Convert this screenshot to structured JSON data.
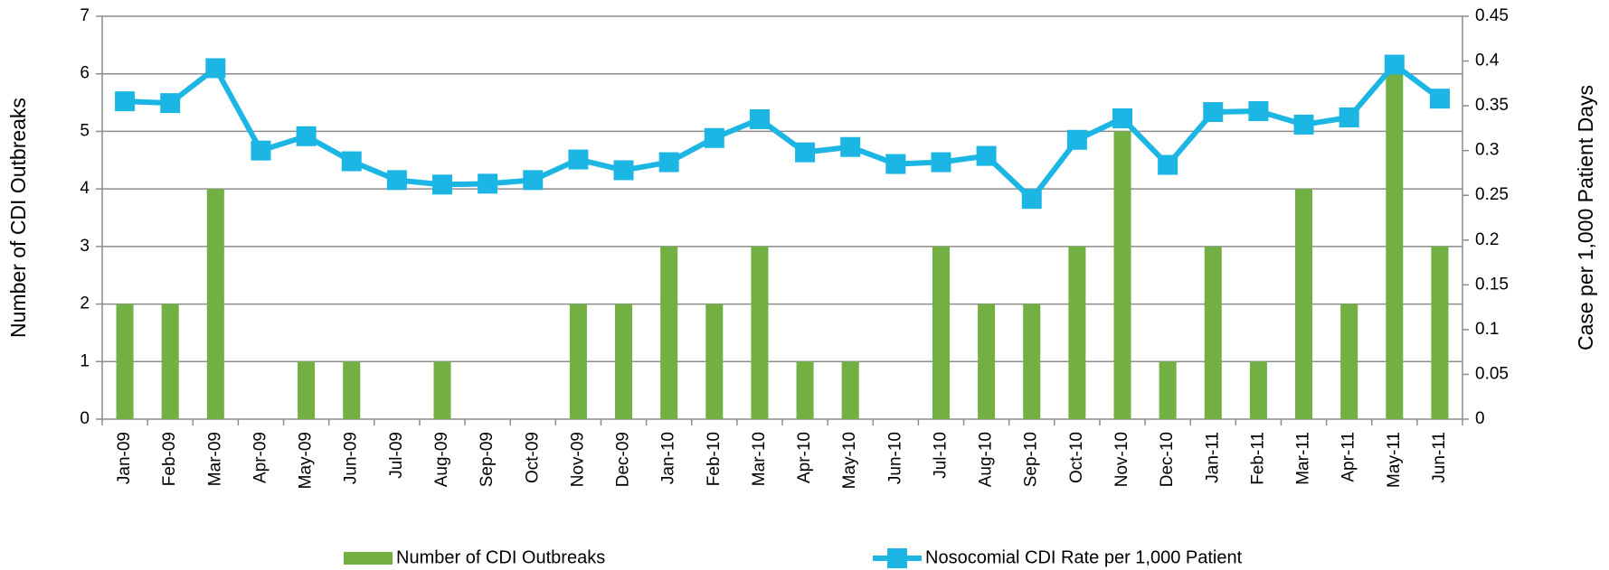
{
  "chart_data": {
    "type": "bar",
    "categories": [
      "Jan-09",
      "Feb-09",
      "Mar-09",
      "Apr-09",
      "May-09",
      "Jun-09",
      "Jul-09",
      "Aug-09",
      "Sep-09",
      "Oct-09",
      "Nov-09",
      "Dec-09",
      "Jan-10",
      "Feb-10",
      "Mar-10",
      "Apr-10",
      "May-10",
      "Jun-10",
      "Jul-10",
      "Aug-10",
      "Sep-10",
      "Oct-10",
      "Nov-10",
      "Dec-10",
      "Jan-11",
      "Feb-11",
      "Mar-11",
      "Apr-11",
      "May-11",
      "Jun-11"
    ],
    "series": [
      {
        "name": "Number of CDI Outbreaks",
        "type": "bar",
        "color": "#72b043",
        "values": [
          2,
          2,
          4,
          0,
          1,
          1,
          0,
          1,
          0,
          0,
          2,
          2,
          3,
          2,
          3,
          1,
          1,
          0,
          3,
          2,
          2,
          3,
          5,
          1,
          3,
          1,
          4,
          2,
          6,
          3
        ]
      },
      {
        "name": "Nosocomial CDI Rate per 1,000 Patient",
        "type": "line",
        "axis": "y2",
        "color": "#1cb6e4",
        "values": [
          0.355,
          0.353,
          0.392,
          0.3,
          0.316,
          0.288,
          0.267,
          0.262,
          0.263,
          0.267,
          0.29,
          0.278,
          0.287,
          0.314,
          0.335,
          0.298,
          0.304,
          0.285,
          0.287,
          0.294,
          0.246,
          0.312,
          0.336,
          0.284,
          0.343,
          0.344,
          0.329,
          0.337,
          0.396,
          0.358
        ]
      }
    ],
    "y_label": "Number of CDI Outbreaks",
    "y2_label": "Case per 1,000 Patient Days",
    "ylim": [
      0,
      7
    ],
    "yticks": [
      0,
      1,
      2,
      3,
      4,
      5,
      6,
      7
    ],
    "y2lim": [
      0,
      0.45
    ],
    "y2ticks": [
      0,
      0.05,
      0.1,
      0.15,
      0.2,
      0.25,
      0.3,
      0.35,
      0.4,
      0.45
    ],
    "grid": true
  }
}
